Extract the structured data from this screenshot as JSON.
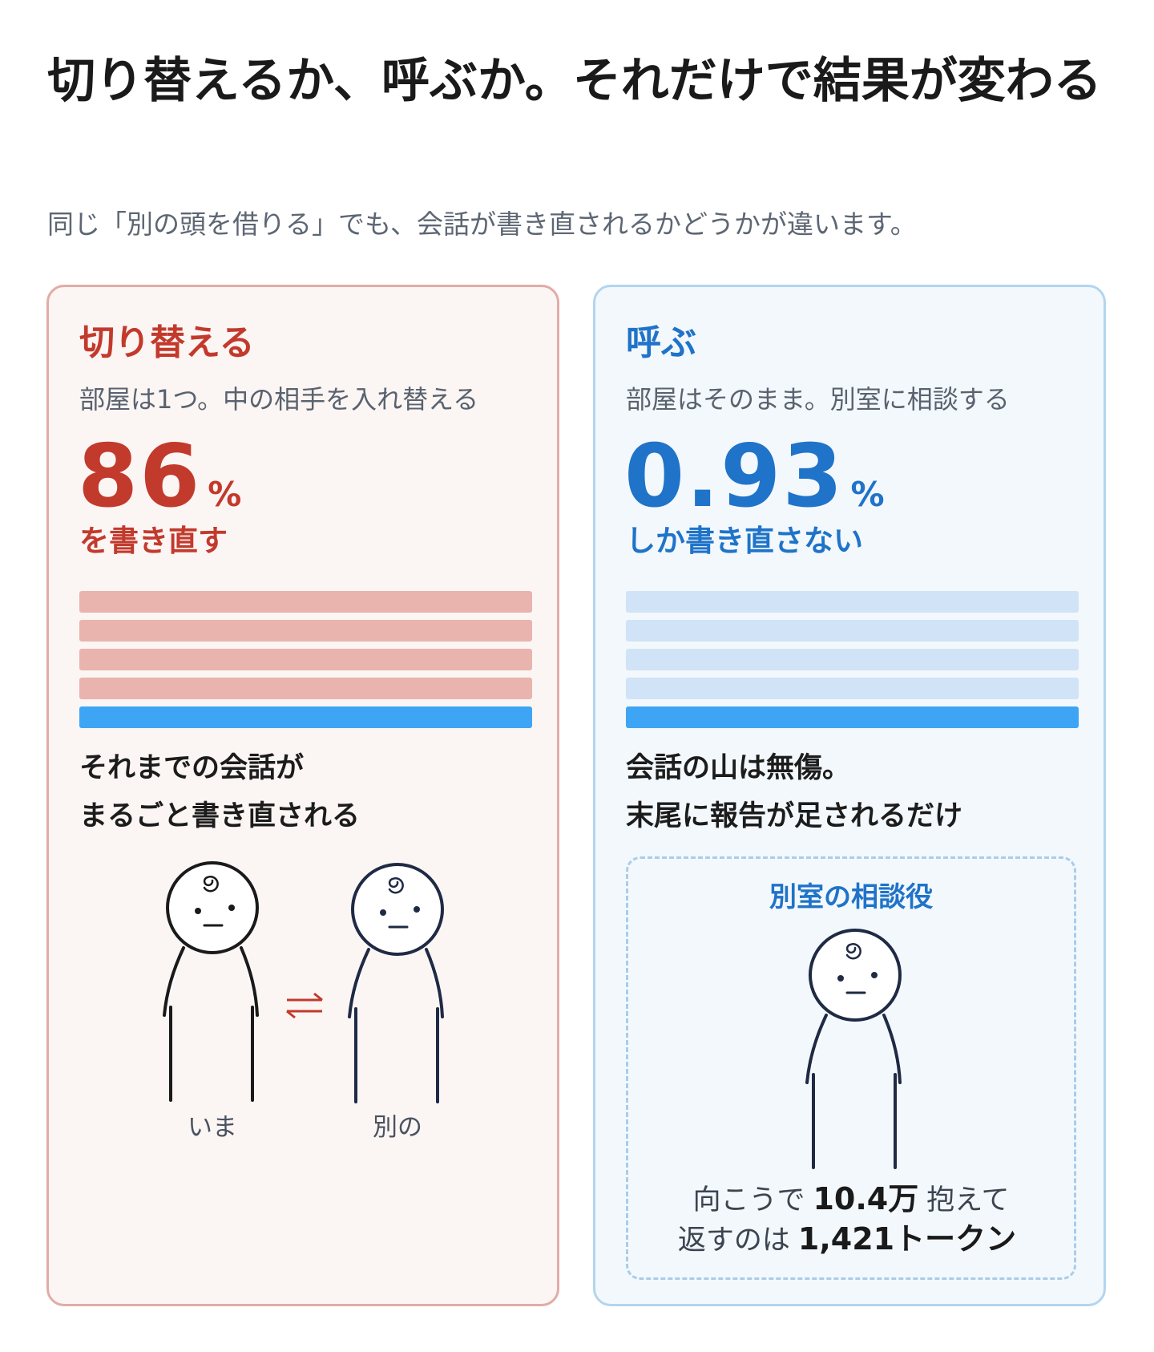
{
  "header": {
    "title": "切り替えるか、呼ぶか。それだけで結果が変わる",
    "subtitle": "同じ「別の頭を借りる」でも、会話が書き直されるかどうかが違います。"
  },
  "cards": [
    {
      "title": "切り替える",
      "description": "部屋は1つ。中の相手を入れ替える",
      "stat": {
        "value": 86,
        "unit": "%",
        "caption": "を書き直す"
      },
      "summary": [
        "それまでの会話が",
        "まるごと書き直される"
      ],
      "figures": [
        "いま",
        "別の"
      ]
    },
    {
      "title": "呼ぶ",
      "description": "部屋はそのまま。別室に相談する",
      "stat": {
        "value": 0.93,
        "unit": "%",
        "caption": "しか書き直さない"
      },
      "summary": [
        "会話の山は無傷。",
        "末尾に報告が足されるだけ"
      ],
      "box": {
        "title": "別室の相談役",
        "line1": {
          "before": "向こうで",
          "value": "10.4万",
          "after": "抱えて"
        },
        "line2": {
          "before": "返すのは",
          "value": "1,421トークン"
        }
      }
    }
  ]
}
